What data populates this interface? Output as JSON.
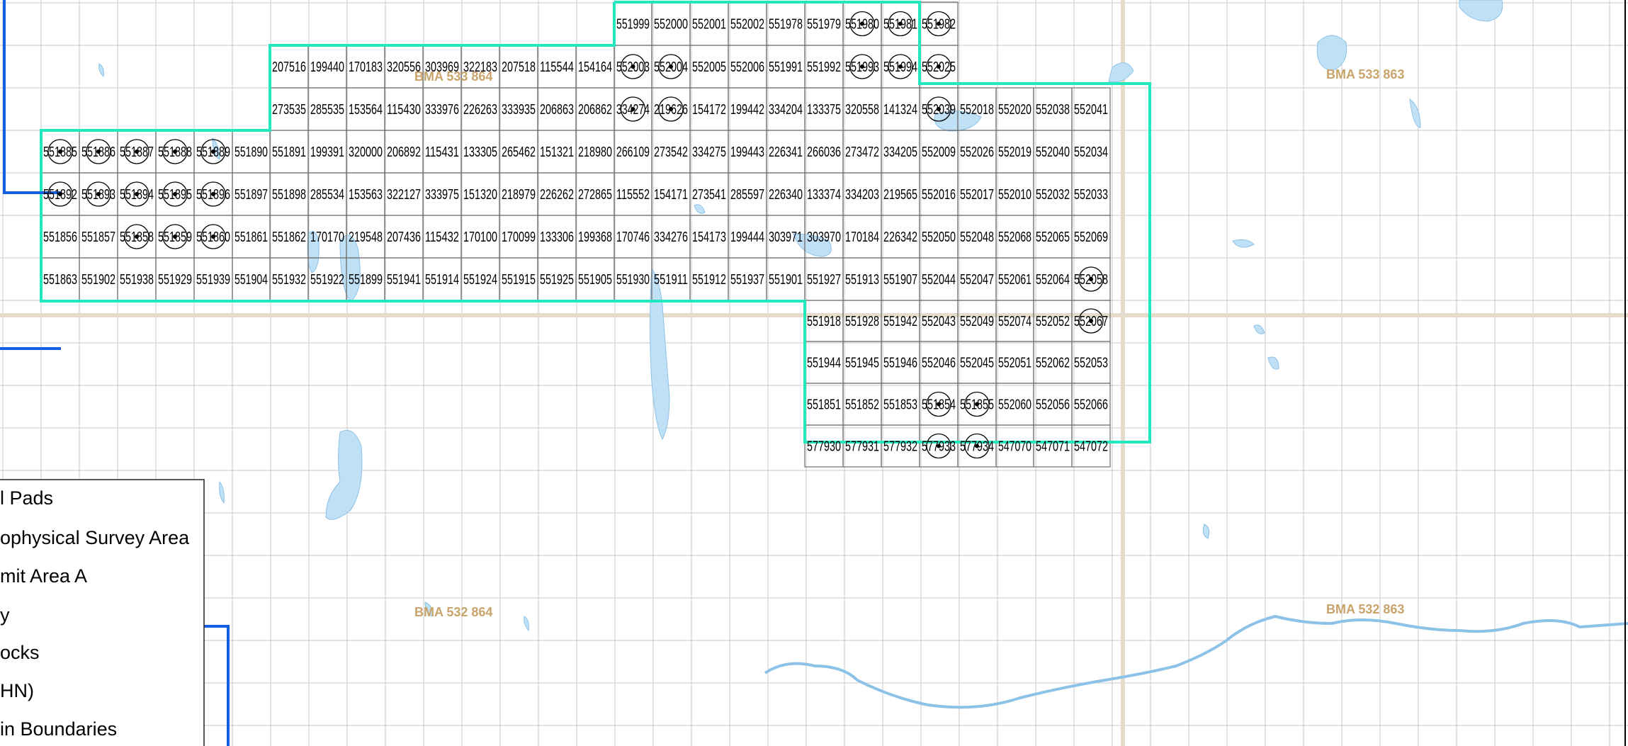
{
  "colors": {
    "survey_boundary": "#22e8c0",
    "grid_line": "#c8c8c8",
    "cell_line": "#6e6e6e",
    "water": "#bfe0f5",
    "water_edge": "#8cc2e8",
    "boundary_blue": "#1560e0",
    "road": "#e6dccb",
    "bma_label": "#c8a46a"
  },
  "bma_labels": [
    "BMA 533 864",
    "BMA 533 863",
    "BMA 532 864",
    "BMA 532 863"
  ],
  "legend": {
    "items": [
      "l Pads",
      "ophysical Survey Area",
      "mit Area A",
      "y",
      "ocks",
      "HN)",
      "in Boundaries"
    ]
  },
  "blocks": {
    "row0": [
      "551999",
      "552000",
      "552001",
      "552002",
      "551978",
      "551979",
      "551980",
      "551981",
      "551982"
    ],
    "row1": [
      "207516",
      "199440",
      "170183",
      "320556",
      "303969",
      "322183",
      "207518",
      "115544",
      "154164",
      "552003",
      "552004",
      "552005",
      "552006",
      "551991",
      "551992",
      "551993",
      "551994",
      "552025"
    ],
    "row2": [
      "273535",
      "285535",
      "153564",
      "115430",
      "333976",
      "226263",
      "333935",
      "206863",
      "206862",
      "334274",
      "219626",
      "154172",
      "199442",
      "334204",
      "133375",
      "320558",
      "141324",
      "552039",
      "552018",
      "552020",
      "552038",
      "552041"
    ],
    "row3": [
      "551885",
      "551886",
      "551887",
      "551888",
      "551889",
      "551890",
      "551891",
      "199391",
      "320000",
      "206892",
      "115431",
      "133305",
      "265462",
      "151321",
      "218980",
      "266109",
      "273542",
      "334275",
      "199443",
      "226341",
      "266036",
      "273472",
      "334205",
      "552009",
      "552026",
      "552019",
      "552040",
      "552034"
    ],
    "row4": [
      "551892",
      "551893",
      "551894",
      "551895",
      "551896",
      "551897",
      "551898",
      "285534",
      "153563",
      "322127",
      "333975",
      "151320",
      "218979",
      "226262",
      "272865",
      "115552",
      "154171",
      "273541",
      "285597",
      "226340",
      "133374",
      "334203",
      "219565",
      "552016",
      "552017",
      "552010",
      "552032",
      "552033"
    ],
    "row5": [
      "551856",
      "551857",
      "551858",
      "551859",
      "551860",
      "551861",
      "551862",
      "170170",
      "219548",
      "207436",
      "115432",
      "170100",
      "170099",
      "133306",
      "199368",
      "170746",
      "334276",
      "154173",
      "199444",
      "303971",
      "303970",
      "170184",
      "226342",
      "552050",
      "552048",
      "552068",
      "552065",
      "552069"
    ],
    "row6": [
      "551863",
      "551902",
      "551938",
      "551929",
      "551939",
      "551904",
      "551932",
      "551922",
      "551899",
      "551941",
      "551914",
      "551924",
      "551915",
      "551925",
      "551905",
      "551930",
      "551911",
      "551912",
      "551937",
      "551901",
      "551927",
      "551913",
      "551907",
      "552044",
      "552047",
      "552061",
      "552064",
      "552058"
    ],
    "row7": [
      "551918",
      "551928",
      "551942",
      "552043",
      "552049",
      "552074",
      "552052",
      "552067"
    ],
    "row8": [
      "551944",
      "551945",
      "551946",
      "552046",
      "552045",
      "552051",
      "552062",
      "552053"
    ],
    "row9": [
      "551851",
      "551852",
      "551853",
      "551854",
      "551855",
      "552060",
      "552056",
      "552066"
    ],
    "row10": [
      "577930",
      "577931",
      "577932",
      "577933",
      "577934",
      "547070",
      "547071",
      "547072"
    ]
  },
  "pads": [
    "551980",
    "551981",
    "551982",
    "552003",
    "552004",
    "551993",
    "551994",
    "552025",
    "334274",
    "219626",
    "552039",
    "551885",
    "551886",
    "551887",
    "551888",
    "551889",
    "551892",
    "551893",
    "551894",
    "551895",
    "551896",
    "551858",
    "551859",
    "551860",
    "552058",
    "552067",
    "551854",
    "551855",
    "577933",
    "577934"
  ]
}
